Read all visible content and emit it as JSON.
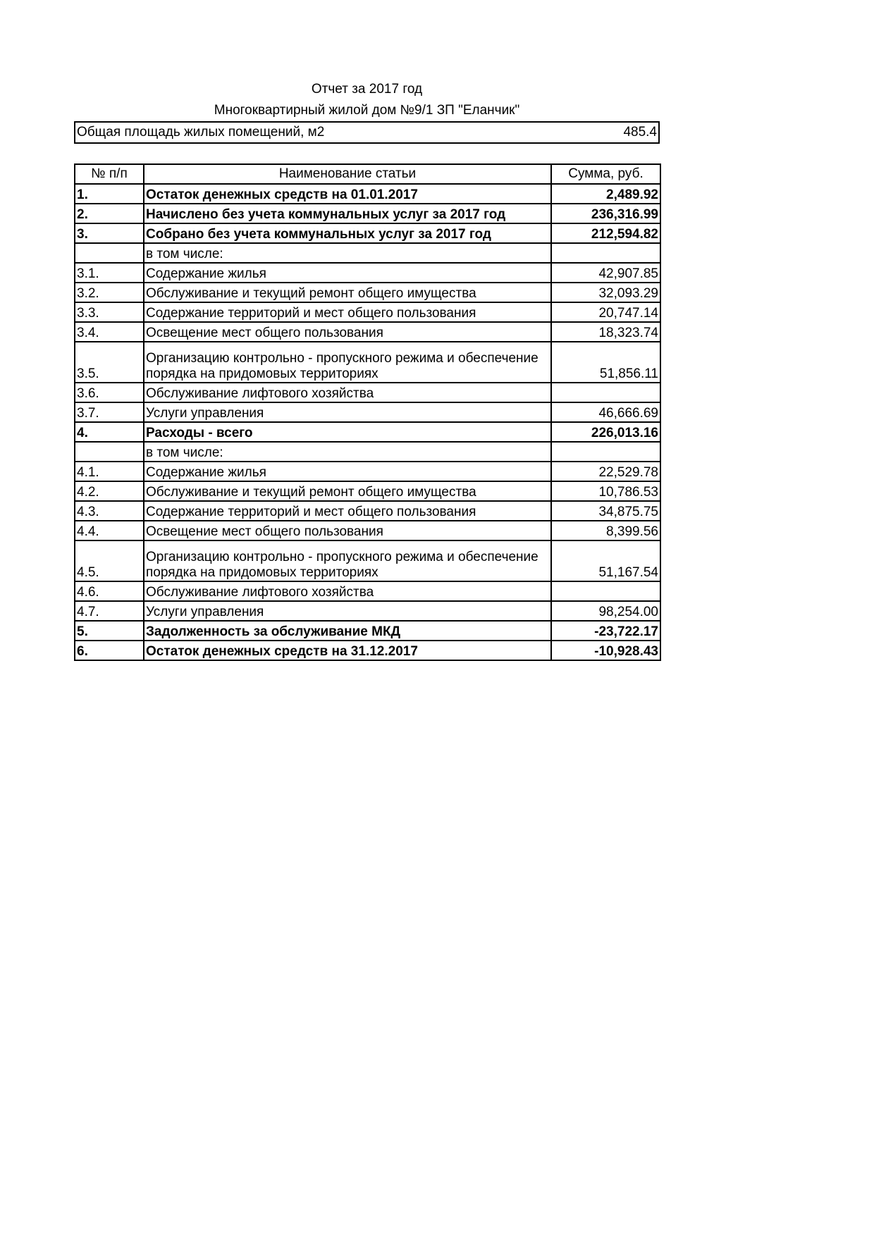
{
  "header": {
    "title": "Отчет за 2017 год",
    "subtitle": "Многоквартирный жилой дом №9/1 ЗП \"Еланчик\"",
    "area_label": "Общая площадь жилых помещений, м2",
    "area_value": "485.4"
  },
  "table": {
    "columns": [
      "№ п/п",
      "Наименование статьи",
      "Сумма, руб."
    ],
    "rows": [
      {
        "num": "1.",
        "name": "Остаток денежных средств на 01.01.2017",
        "sum": "2,489.92",
        "bold": true
      },
      {
        "num": "2.",
        "name": "Начислено без учета коммунальных услуг за 2017 год",
        "sum": "236,316.99",
        "bold": true
      },
      {
        "num": "3.",
        "name": "Собрано без учета коммунальных услуг за 2017 год",
        "sum": "212,594.82",
        "bold": true
      },
      {
        "num": "",
        "name": "в том числе:",
        "sum": ""
      },
      {
        "num": "3.1.",
        "name": "Содержание жилья",
        "sum": "42,907.85"
      },
      {
        "num": "3.2.",
        "name": "Обслуживание и текущий ремонт общего имущества",
        "sum": "32,093.29"
      },
      {
        "num": "3.3.",
        "name": "Содержание территорий и мест общего пользования",
        "sum": "20,747.14"
      },
      {
        "num": "3.4.",
        "name": "Освещение мест общего пользования",
        "sum": "18,323.74"
      },
      {
        "num": "3.5.",
        "name": "Организацию контрольно - пропускного режима и обеспечение порядка на придомовых территориях",
        "sum": "51,856.11",
        "tall": true
      },
      {
        "num": "3.6.",
        "name": "Обслуживание лифтового хозяйства",
        "sum": ""
      },
      {
        "num": "3.7.",
        "name": "Услуги управления",
        "sum": "46,666.69"
      },
      {
        "num": "4.",
        "name": "Расходы - всего",
        "sum": "226,013.16",
        "bold": true
      },
      {
        "num": "",
        "name": "в том числе:",
        "sum": ""
      },
      {
        "num": "4.1.",
        "name": "Содержание жилья",
        "sum": "22,529.78"
      },
      {
        "num": "4.2.",
        "name": "Обслуживание и текущий ремонт общего имущества",
        "sum": "10,786.53"
      },
      {
        "num": "4.3.",
        "name": "Содержание территорий и мест общего пользования",
        "sum": "34,875.75"
      },
      {
        "num": "4.4.",
        "name": "Освещение мест общего пользования",
        "sum": "8,399.56"
      },
      {
        "num": "4.5.",
        "name": "Организацию контрольно - пропускного режима и обеспечение порядка на придомовых территориях",
        "sum": "51,167.54",
        "tall": true
      },
      {
        "num": "4.6.",
        "name": "Обслуживание лифтового хозяйства",
        "sum": ""
      },
      {
        "num": "4.7.",
        "name": "Услуги управления",
        "sum": "98,254.00"
      },
      {
        "num": "5.",
        "name": "Задолженность за обслуживание МКД",
        "sum": "-23,722.17",
        "bold": true
      },
      {
        "num": "6.",
        "name": "Остаток денежных средств на 31.12.2017",
        "sum": "-10,928.43",
        "bold": true
      }
    ]
  }
}
